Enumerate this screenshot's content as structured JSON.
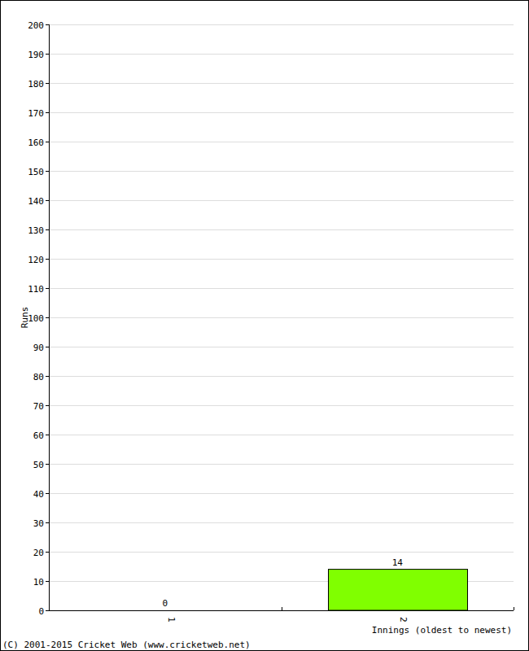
{
  "chart_data": {
    "type": "bar",
    "x_label": "Innings (oldest to newest)",
    "y_label": "Runs",
    "annotations": [
      "(C) 2001-2015 Cricket Web (www.cricketweb.net)"
    ],
    "categories": [
      "1",
      "2"
    ],
    "values": [
      0,
      14
    ],
    "color": "#80ff00",
    "ylim": [
      0,
      200
    ],
    "yticks": [
      0,
      10,
      20,
      30,
      40,
      50,
      60,
      70,
      80,
      90,
      100,
      110,
      120,
      130,
      140,
      150,
      160,
      170,
      180,
      190,
      200
    ],
    "grid": true,
    "data_labels": true
  }
}
